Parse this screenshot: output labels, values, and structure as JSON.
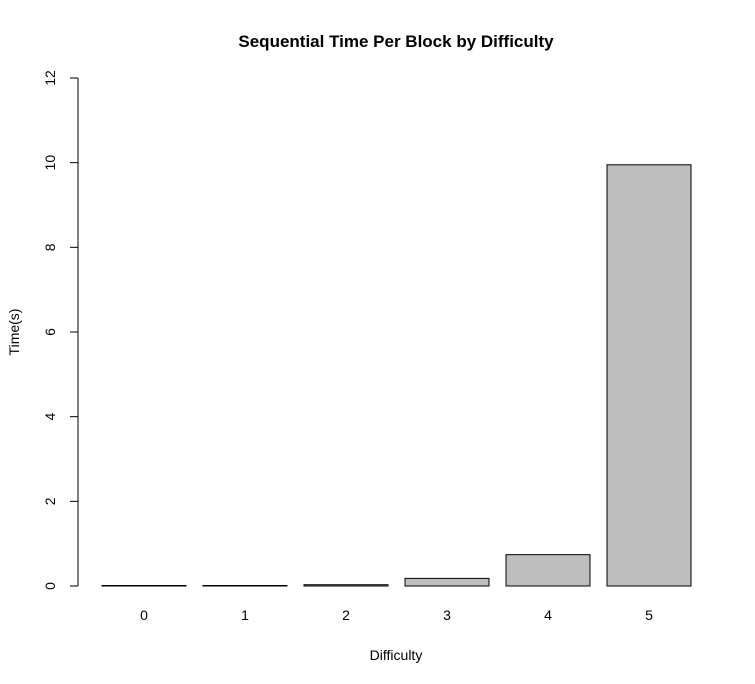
{
  "chart_data": {
    "type": "bar",
    "title": "Sequential Time Per Block by Difficulty",
    "xlabel": "Difficulty",
    "ylabel": "Time(s)",
    "categories": [
      "0",
      "1",
      "2",
      "3",
      "4",
      "5"
    ],
    "values": [
      0.0,
      0.005,
      0.03,
      0.18,
      0.74,
      9.95
    ],
    "ylim": [
      0,
      12
    ],
    "yticks": [
      0,
      2,
      4,
      6,
      8,
      10,
      12
    ],
    "ytick_labels": [
      "0",
      "2",
      "4",
      "6",
      "8",
      "10",
      "12"
    ],
    "grid": false,
    "bar_color": "#bebebe",
    "bar_border_color": "#000000"
  }
}
